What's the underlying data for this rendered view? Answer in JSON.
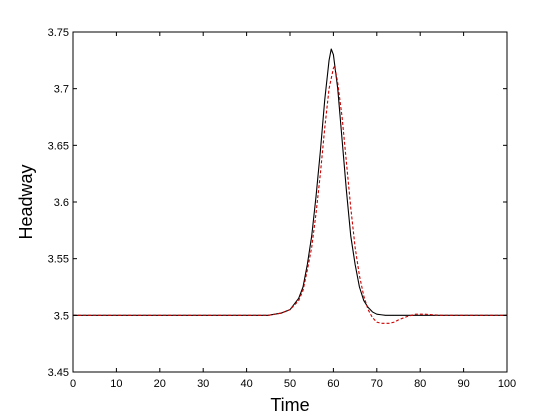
{
  "chart_data": {
    "type": "line",
    "title": "",
    "xlabel": "Time",
    "ylabel": "Headway",
    "xlim": [
      0,
      100
    ],
    "ylim": [
      3.45,
      3.75
    ],
    "xticks": [
      0,
      10,
      20,
      30,
      40,
      50,
      60,
      70,
      80,
      90,
      100
    ],
    "yticks": [
      3.45,
      3.5,
      3.55,
      3.6,
      3.65,
      3.7,
      3.75
    ],
    "xtick_labels": [
      "0",
      "10",
      "20",
      "30",
      "40",
      "50",
      "60",
      "70",
      "80",
      "90",
      "100"
    ],
    "ytick_labels": [
      "3.45",
      "3.5",
      "3.55",
      "3.6",
      "3.65",
      "3.7",
      "3.75"
    ],
    "grid": false,
    "legend": "none",
    "series": [
      {
        "color": "#000000",
        "line_style": "solid",
        "x": [
          0,
          10,
          20,
          30,
          40,
          45,
          48,
          50,
          52,
          53,
          54,
          55,
          56,
          57,
          58,
          59,
          59.5,
          60,
          61,
          62,
          63,
          64,
          65,
          66,
          67,
          68,
          69,
          70,
          72,
          75,
          80,
          90,
          100
        ],
        "y": [
          3.5,
          3.5,
          3.5,
          3.5,
          3.5,
          3.5,
          3.502,
          3.505,
          3.515,
          3.525,
          3.545,
          3.57,
          3.605,
          3.645,
          3.69,
          3.725,
          3.735,
          3.73,
          3.7,
          3.655,
          3.61,
          3.57,
          3.545,
          3.525,
          3.513,
          3.507,
          3.503,
          3.501,
          3.5,
          3.5,
          3.5,
          3.5,
          3.5
        ]
      },
      {
        "color": "#cc0000",
        "line_style": "dashed",
        "x": [
          0,
          10,
          20,
          30,
          40,
          45,
          48,
          50,
          52,
          53,
          54,
          55,
          56,
          57,
          58,
          59,
          60,
          60.3,
          61,
          62,
          63,
          64,
          65,
          66,
          67,
          68,
          69,
          70,
          71,
          72,
          73,
          74,
          75,
          77,
          79,
          81,
          85,
          90,
          95,
          100
        ],
        "y": [
          3.5,
          3.5,
          3.5,
          3.5,
          3.5,
          3.5,
          3.502,
          3.505,
          3.513,
          3.522,
          3.54,
          3.56,
          3.59,
          3.625,
          3.665,
          3.7,
          3.718,
          3.72,
          3.705,
          3.675,
          3.635,
          3.595,
          3.56,
          3.535,
          3.517,
          3.505,
          3.498,
          3.494,
          3.493,
          3.493,
          3.493,
          3.494,
          3.496,
          3.499,
          3.501,
          3.501,
          3.5,
          3.5,
          3.5,
          3.5
        ]
      }
    ]
  }
}
